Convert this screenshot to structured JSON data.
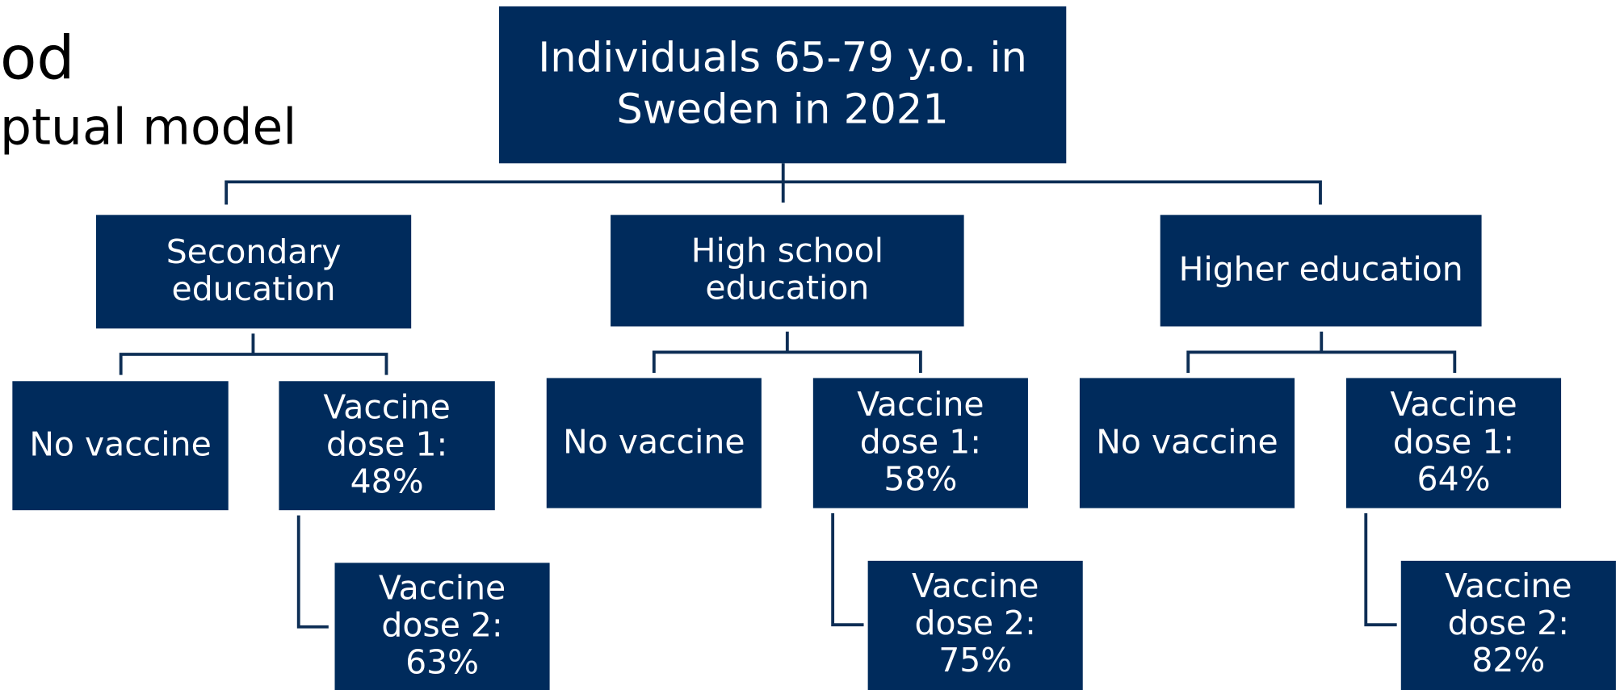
{
  "header": {
    "title": "od",
    "subtitle": "ptual model"
  },
  "nodes": [
    {
      "lines": [
        "Individuals 65-79 y.o. in",
        "Sweden in 2021"
      ]
    },
    {
      "lines": [
        "Secondary",
        "education"
      ]
    },
    {
      "lines": [
        "High school",
        "education"
      ]
    },
    {
      "lines": [
        "Higher education"
      ]
    },
    {
      "lines": [
        "No vaccine"
      ]
    },
    {
      "lines": [
        "Vaccine",
        "dose 1:",
        "48%"
      ]
    },
    {
      "lines": [
        "No vaccine"
      ]
    },
    {
      "lines": [
        "Vaccine",
        "dose 1:",
        "58%"
      ]
    },
    {
      "lines": [
        "No vaccine"
      ]
    },
    {
      "lines": [
        "Vaccine",
        "dose 1:",
        "64%"
      ]
    },
    {
      "lines": [
        "Vaccine",
        "dose 2:",
        "63%"
      ]
    },
    {
      "lines": [
        "Vaccine",
        "dose 2:",
        "75%"
      ]
    },
    {
      "lines": [
        "Vaccine",
        "dose 2:",
        "82%"
      ]
    }
  ]
}
